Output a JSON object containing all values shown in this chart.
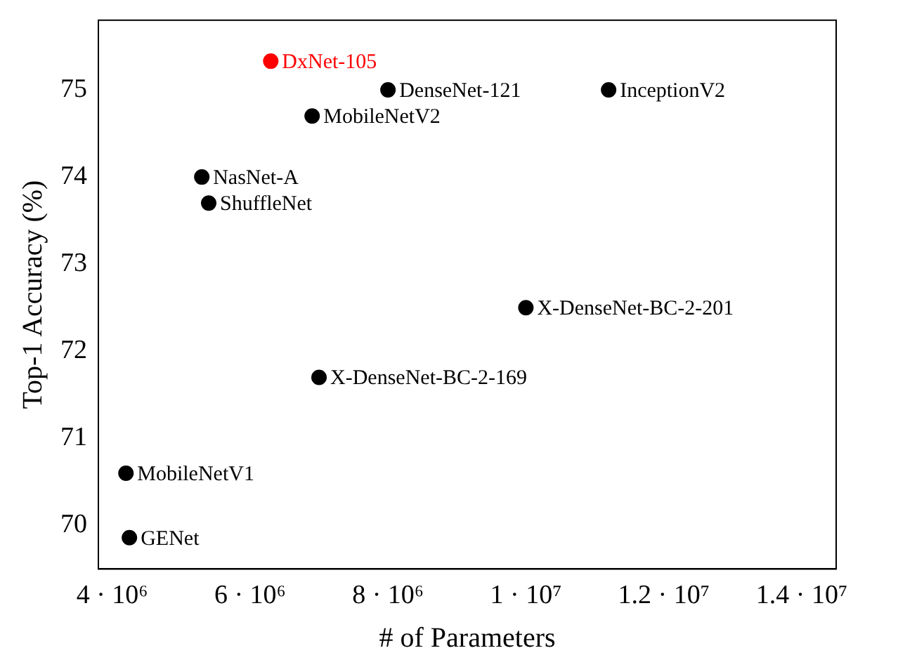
{
  "chart_data": {
    "type": "scatter",
    "xlabel": "# of Parameters",
    "ylabel": "Top-1 Accuracy (%)",
    "xlim": [
      3800000,
      14500000
    ],
    "ylim": [
      69.5,
      75.8
    ],
    "xticks": [
      {
        "value": 4000000,
        "label": "4 · 10⁶"
      },
      {
        "value": 6000000,
        "label": "6 · 10⁶"
      },
      {
        "value": 8000000,
        "label": "8 · 10⁶"
      },
      {
        "value": 10000000,
        "label": "1 · 10⁷"
      },
      {
        "value": 12000000,
        "label": "1.2 · 10⁷"
      },
      {
        "value": 14000000,
        "label": "1.4 · 10⁷"
      }
    ],
    "yticks": [
      70,
      71,
      72,
      73,
      74,
      75
    ],
    "grid": false,
    "legend": false,
    "marker": "circle",
    "series": [
      {
        "name": "DxNet-105",
        "color": "#ff0000",
        "x": [
          6300000
        ],
        "values": [
          75.33
        ]
      },
      {
        "name": "DenseNet-121",
        "color": "#000000",
        "x": [
          8000000
        ],
        "values": [
          75.0
        ]
      },
      {
        "name": "InceptionV2",
        "color": "#000000",
        "x": [
          11200000
        ],
        "values": [
          75.0
        ]
      },
      {
        "name": "MobileNetV2",
        "color": "#000000",
        "x": [
          6900000
        ],
        "values": [
          74.7
        ]
      },
      {
        "name": "NasNet-A",
        "color": "#000000",
        "x": [
          5300000
        ],
        "values": [
          74.0
        ]
      },
      {
        "name": "ShuffleNet",
        "color": "#000000",
        "x": [
          5400000
        ],
        "values": [
          73.7
        ]
      },
      {
        "name": "X-DenseNet-BC-2-201",
        "color": "#000000",
        "x": [
          10000000
        ],
        "values": [
          72.5
        ]
      },
      {
        "name": "X-DenseNet-BC-2-169",
        "color": "#000000",
        "x": [
          7000000
        ],
        "values": [
          71.7
        ]
      },
      {
        "name": "MobileNetV1",
        "color": "#000000",
        "x": [
          4200000
        ],
        "values": [
          70.6
        ]
      },
      {
        "name": "GENet",
        "color": "#000000",
        "x": [
          4250000
        ],
        "values": [
          69.86
        ]
      }
    ]
  }
}
